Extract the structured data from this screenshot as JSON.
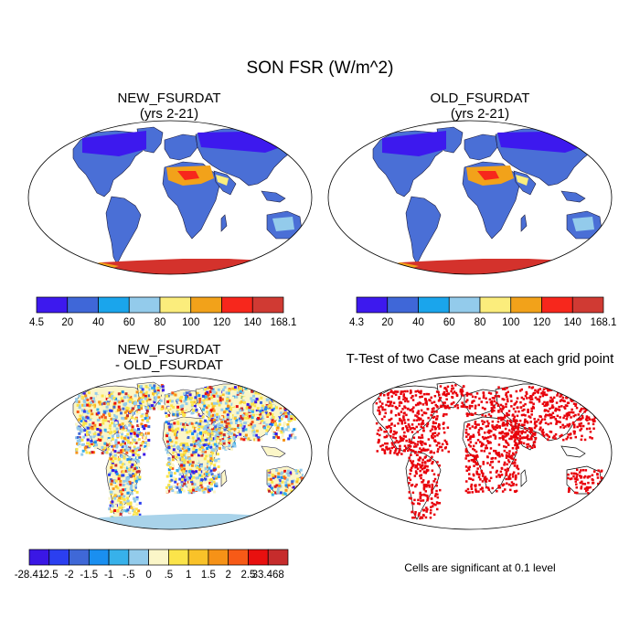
{
  "title": "SON FSR (W/m^2)",
  "panels": {
    "top_left": {
      "line1": "NEW_FSURDAT",
      "line2": "(yrs 2-21)"
    },
    "top_right": {
      "line1": "OLD_FSURDAT",
      "line2": "(yrs 2-21)"
    },
    "bottom_left": {
      "line1": "NEW_FSURDAT",
      "line2": "- OLD_FSURDAT"
    },
    "bottom_right": {
      "title": "T-Test of two Case means at each grid point",
      "note": "Cells are significant at 0.1 level"
    }
  },
  "colorbars": {
    "top_left": {
      "labels": [
        "4.5",
        "20",
        "40",
        "60",
        "80",
        "100",
        "120",
        "140",
        "168.1"
      ],
      "colors": [
        "#3d19ee",
        "#3f67d8",
        "#1aa5ec",
        "#93cbeb",
        "#fbed7c",
        "#f2a21a",
        "#f7271c",
        "#d03a33"
      ]
    },
    "top_right": {
      "labels": [
        "4.3",
        "20",
        "40",
        "60",
        "80",
        "100",
        "120",
        "140",
        "168.1"
      ],
      "colors": [
        "#3d19ee",
        "#3f67d8",
        "#1aa5ec",
        "#93cbeb",
        "#fbed7c",
        "#f2a21a",
        "#f7271c",
        "#d03a33"
      ]
    },
    "bottom_left": {
      "labels": [
        "-28.41",
        "-2.5",
        "-2",
        "-1.5",
        "-1",
        "-.5",
        "0",
        ".5",
        "1",
        "1.5",
        "2",
        "2.5",
        "33.468"
      ],
      "colors": [
        "#3a17e5",
        "#2b3ff0",
        "#3f68d7",
        "#1a8ff0",
        "#37b1ea",
        "#93cbeb",
        "#fbf6c8",
        "#fbe44a",
        "#f9c229",
        "#f69217",
        "#f75a17",
        "#e8100f",
        "#c62c2c"
      ]
    }
  },
  "colors": {
    "sig_red": "#e8000a",
    "antarctica_hot": "#d4322c",
    "land_blue": "#4a6fd6"
  }
}
